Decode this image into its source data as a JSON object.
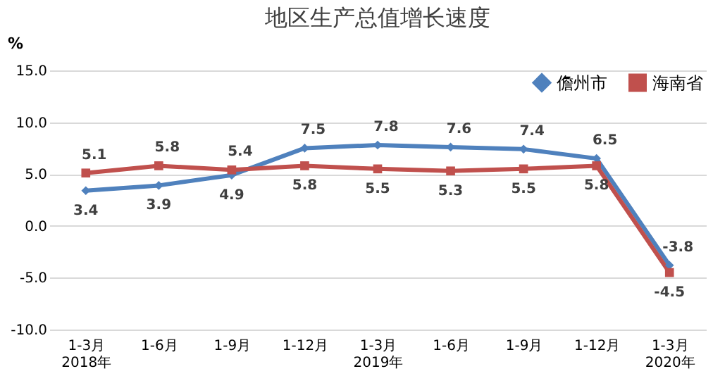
{
  "chart_data": {
    "type": "line",
    "title": "地区生产总值增长速度",
    "ylabel": "%",
    "categories": [
      "1-3月\n2018年",
      "1-6月",
      "1-9月",
      "1-12月",
      "1-3月\n2019年",
      "1-6月",
      "1-9月",
      "1-12月",
      "1-3月\n2020年"
    ],
    "series": [
      {
        "name": "儋州市",
        "color": "#4f81bd",
        "marker": "diamond",
        "values": [
          3.4,
          3.9,
          4.9,
          7.5,
          7.8,
          7.6,
          7.4,
          6.5,
          -3.8
        ]
      },
      {
        "name": "海南省",
        "color": "#c0504d",
        "marker": "square",
        "values": [
          5.1,
          5.8,
          5.4,
          5.8,
          5.5,
          5.3,
          5.5,
          5.8,
          -4.5
        ]
      }
    ],
    "ylim": [
      -10,
      15
    ],
    "yticks": [
      {
        "value": -10,
        "label": "-10.0"
      },
      {
        "value": -5,
        "label": "-5.0"
      },
      {
        "value": 0,
        "label": "0.0"
      },
      {
        "value": 5,
        "label": "5.0"
      },
      {
        "value": 10,
        "label": "10.0"
      },
      {
        "value": 15,
        "label": "15.0"
      }
    ],
    "grid": "y",
    "legend": "top right",
    "data_labels": true
  }
}
